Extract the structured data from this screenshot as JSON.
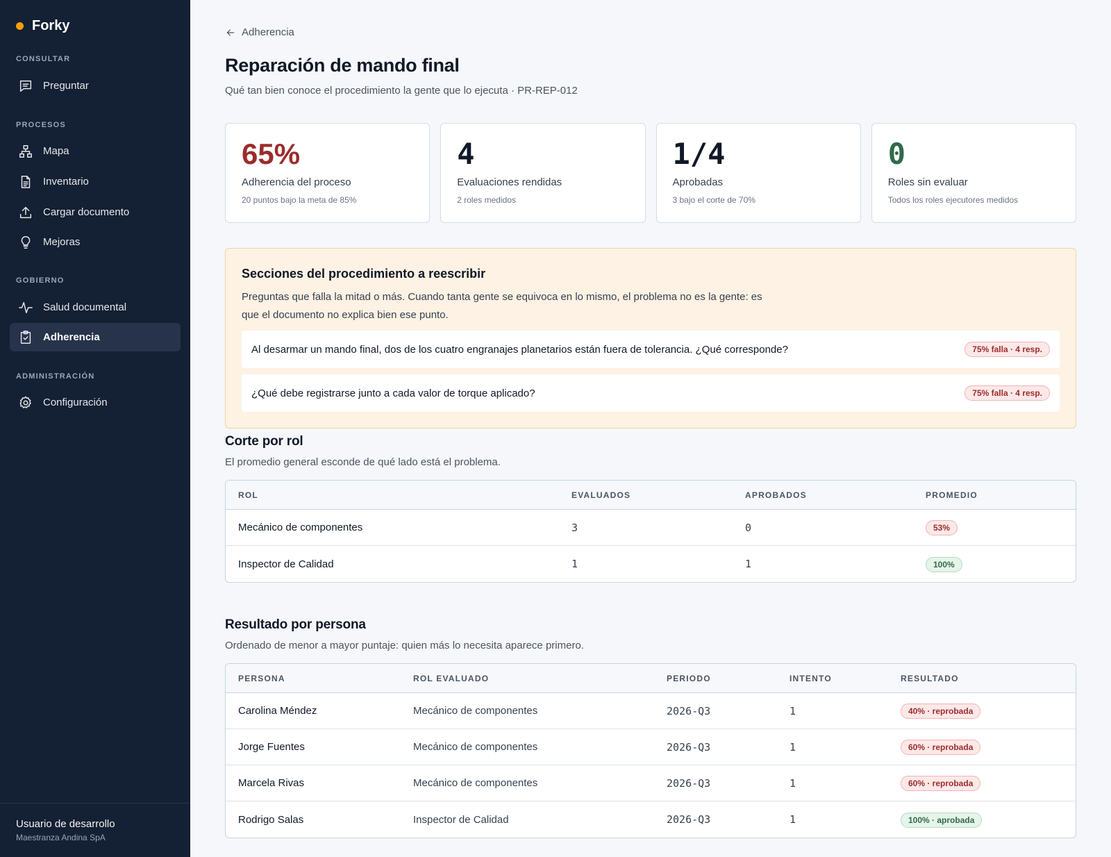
{
  "app": {
    "name": "Forky"
  },
  "sidebar": {
    "sections": [
      {
        "title": "CONSULTAR",
        "items": [
          {
            "label": "Preguntar",
            "icon": "chat-icon"
          }
        ]
      },
      {
        "title": "PROCESOS",
        "items": [
          {
            "label": "Mapa",
            "icon": "hierarchy-icon"
          },
          {
            "label": "Inventario",
            "icon": "document-icon"
          },
          {
            "label": "Cargar documento",
            "icon": "upload-icon"
          },
          {
            "label": "Mejoras",
            "icon": "lightbulb-icon"
          }
        ]
      },
      {
        "title": "GOBIERNO",
        "items": [
          {
            "label": "Salud documental",
            "icon": "activity-icon"
          },
          {
            "label": "Adherencia",
            "icon": "clipboard-check-icon",
            "active": true
          }
        ]
      },
      {
        "title": "ADMINISTRACIÓN",
        "items": [
          {
            "label": "Configuración",
            "icon": "gear-icon"
          }
        ]
      }
    ],
    "user": {
      "name": "Usuario de desarrollo",
      "org": "Maestranza Andina SpA"
    }
  },
  "breadcrumb": {
    "label": "Adherencia"
  },
  "page": {
    "title": "Reparación de mando final",
    "subtitle": "Qué tan bien conoce el procedimiento la gente que lo ejecuta · PR-REP-012"
  },
  "kpis": [
    {
      "value": "65%",
      "label": "Adherencia del proceso",
      "sub": "20 puntos bajo la meta de 85%",
      "color": "#9b2c2c"
    },
    {
      "value": "4",
      "label": "Evaluaciones rendidas",
      "sub": "2 roles medidos"
    },
    {
      "value": "1/4",
      "label": "Aprobadas",
      "sub": "3 bajo el corte de 70%"
    },
    {
      "value": "0",
      "label": "Roles sin evaluar",
      "sub": "Todos los roles ejecutores medidos",
      "color": "#2f6b4a"
    }
  ],
  "rewrite": {
    "title": "Secciones del procedimiento a reescribir",
    "description": "Preguntas que falla la mitad o más. Cuando tanta gente se equivoca en lo mismo, el problema no es la gente: es que el documento no explica bien ese punto.",
    "questions": [
      {
        "text": "Al desarmar un mando final, dos de los cuatro engranajes planetarios están fuera de tolerancia. ¿Qué corresponde?",
        "badge": "75% falla · 4 resp."
      },
      {
        "text": "¿Qué debe registrarse junto a cada valor de torque aplicado?",
        "badge": "75% falla · 4 resp."
      }
    ]
  },
  "by_role": {
    "title": "Corte por rol",
    "subtitle": "El promedio general esconde de qué lado está el problema.",
    "columns": [
      "ROL",
      "EVALUADOS",
      "APROBADOS",
      "PROMEDIO"
    ],
    "rows": [
      {
        "role": "Mecánico de componentes",
        "evaluated": "3",
        "approved": "0",
        "average": "53%",
        "status": "red"
      },
      {
        "role": "Inspector de Calidad",
        "evaluated": "1",
        "approved": "1",
        "average": "100%",
        "status": "green"
      }
    ]
  },
  "by_person": {
    "title": "Resultado por persona",
    "subtitle": "Ordenado de menor a mayor puntaje: quien más lo necesita aparece primero.",
    "columns": [
      "PERSONA",
      "ROL EVALUADO",
      "PERIODO",
      "INTENTO",
      "RESULTADO"
    ],
    "rows": [
      {
        "person": "Carolina Méndez",
        "role": "Mecánico de componentes",
        "period": "2026-Q3",
        "attempt": "1",
        "result": "40% · reprobada",
        "status": "red"
      },
      {
        "person": "Jorge Fuentes",
        "role": "Mecánico de componentes",
        "period": "2026-Q3",
        "attempt": "1",
        "result": "60% · reprobada",
        "status": "red"
      },
      {
        "person": "Marcela Rivas",
        "role": "Mecánico de componentes",
        "period": "2026-Q3",
        "attempt": "1",
        "result": "60% · reprobada",
        "status": "red"
      },
      {
        "person": "Rodrigo Salas",
        "role": "Inspector de Calidad",
        "period": "2026-Q3",
        "attempt": "1",
        "result": "100% · aprobada",
        "status": "green"
      }
    ]
  },
  "colors": {
    "sidebar_bg": "#142033",
    "accent": "#f59e0b",
    "fail": "#9b2c2c",
    "pass": "#2f6b4a",
    "alert_bg": "#fdf2e3"
  }
}
